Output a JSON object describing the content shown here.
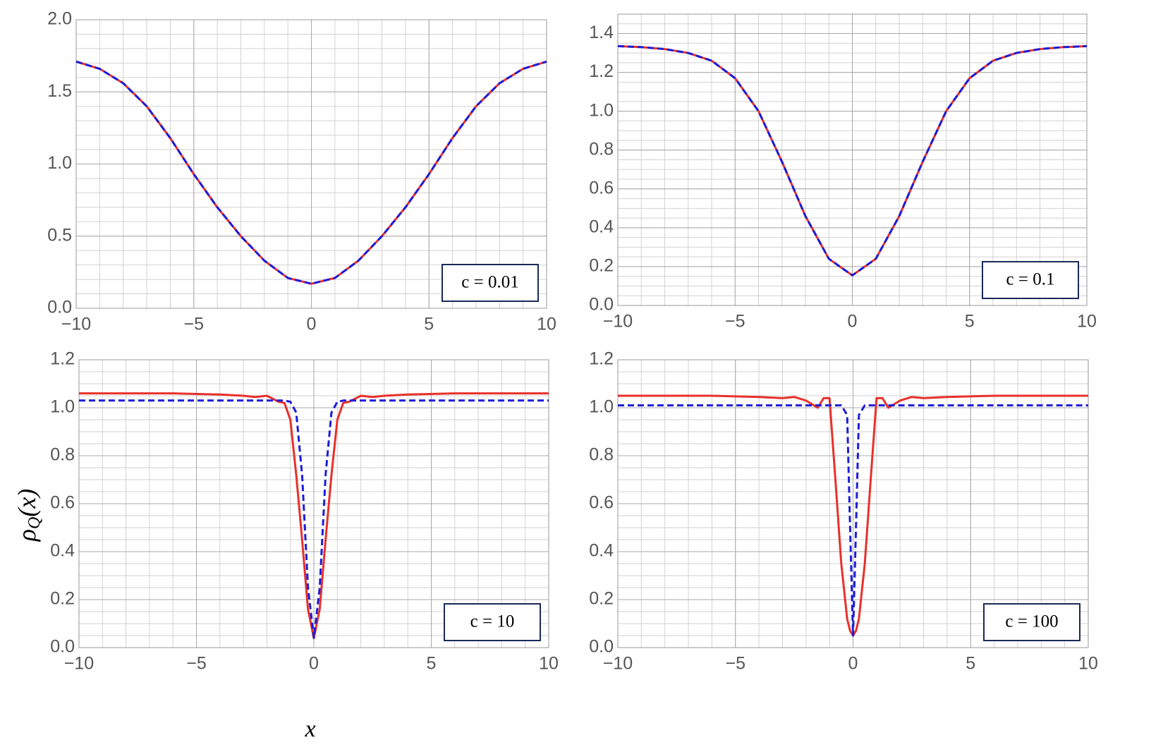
{
  "chart_data": [
    {
      "type": "line",
      "annotation": "c = 0.01",
      "x": [
        -10,
        -9,
        -8,
        -7,
        -6,
        -5,
        -4,
        -3,
        -2,
        -1,
        0,
        1,
        2,
        3,
        4,
        5,
        6,
        7,
        8,
        9,
        10
      ],
      "series": [
        {
          "color": "#e8302a",
          "style": "solid",
          "values": [
            1.71,
            1.66,
            1.56,
            1.4,
            1.18,
            0.93,
            0.7,
            0.5,
            0.33,
            0.21,
            0.17,
            0.21,
            0.33,
            0.5,
            0.7,
            0.93,
            1.18,
            1.4,
            1.56,
            1.66,
            1.71
          ]
        },
        {
          "color": "#1c1cd9",
          "style": "dashed",
          "values": [
            1.71,
            1.66,
            1.56,
            1.4,
            1.18,
            0.93,
            0.7,
            0.5,
            0.33,
            0.21,
            0.17,
            0.21,
            0.33,
            0.5,
            0.7,
            0.93,
            1.18,
            1.4,
            1.56,
            1.66,
            1.71
          ]
        }
      ],
      "xlim": [
        -10,
        10
      ],
      "xticks": [
        {
          "value": -10,
          "label": "−10"
        },
        {
          "value": -5,
          "label": "−5"
        },
        0,
        5,
        10
      ],
      "ylim": [
        0,
        2
      ],
      "yticks": [
        {
          "value": 0,
          "label": "0.0"
        },
        0.5,
        {
          "value": 1,
          "label": "1.0"
        },
        1.5,
        {
          "value": 2,
          "label": "2.0"
        }
      ],
      "xminor": [
        -10,
        -9,
        -8,
        -7,
        -6,
        -5,
        -4,
        -3,
        -2,
        -1,
        0,
        1,
        2,
        3,
        4,
        5,
        6,
        7,
        8,
        9,
        10
      ],
      "yminor": [
        0,
        0.1,
        0.2,
        0.3,
        0.4,
        0.5,
        0.6,
        0.7,
        0.8,
        0.9,
        1,
        1.1,
        1.2,
        1.3,
        1.4,
        1.5,
        1.6,
        1.7,
        1.8,
        1.9,
        2
      ],
      "grid": true
    },
    {
      "type": "line",
      "annotation": "c = 0.1",
      "x": [
        -10,
        -9,
        -8,
        -7,
        -6,
        -5,
        -4,
        -3,
        -2,
        -1,
        0,
        1,
        2,
        3,
        4,
        5,
        6,
        7,
        8,
        9,
        10
      ],
      "series": [
        {
          "color": "#e8302a",
          "style": "solid",
          "values": [
            1.335,
            1.33,
            1.32,
            1.3,
            1.26,
            1.17,
            1.0,
            0.74,
            0.46,
            0.24,
            0.155,
            0.24,
            0.46,
            0.74,
            1.0,
            1.17,
            1.26,
            1.3,
            1.32,
            1.33,
            1.335
          ]
        },
        {
          "color": "#1c1cd9",
          "style": "dashed",
          "values": [
            1.335,
            1.33,
            1.32,
            1.3,
            1.26,
            1.17,
            1.0,
            0.74,
            0.46,
            0.24,
            0.155,
            0.24,
            0.46,
            0.74,
            1.0,
            1.17,
            1.26,
            1.3,
            1.32,
            1.33,
            1.335
          ]
        }
      ],
      "xlim": [
        -10,
        10
      ],
      "xticks": [
        {
          "value": -10,
          "label": "−10"
        },
        {
          "value": -5,
          "label": "−5"
        },
        0,
        5,
        10
      ],
      "ylim": [
        0,
        1.5
      ],
      "yticks": [
        {
          "value": 0,
          "label": "0.0"
        },
        0.2,
        0.4,
        0.6,
        0.8,
        {
          "value": 1,
          "label": "1.0"
        },
        1.2,
        1.4
      ],
      "xminor": [
        -10,
        -9,
        -8,
        -7,
        -6,
        -5,
        -4,
        -3,
        -2,
        -1,
        0,
        1,
        2,
        3,
        4,
        5,
        6,
        7,
        8,
        9,
        10
      ],
      "yminor": [
        0,
        0.05,
        0.1,
        0.15,
        0.2,
        0.25,
        0.3,
        0.35,
        0.4,
        0.45,
        0.5,
        0.55,
        0.6,
        0.65,
        0.7,
        0.75,
        0.8,
        0.85,
        0.9,
        0.95,
        1,
        1.05,
        1.1,
        1.15,
        1.2,
        1.25,
        1.3,
        1.35,
        1.4,
        1.45,
        1.5
      ],
      "grid": true
    },
    {
      "type": "line",
      "annotation": "c = 10",
      "xlabel": "x",
      "ylabel": "ρQ(x)",
      "x": [
        -10,
        -8,
        -6,
        -4,
        -3,
        -2.5,
        -2,
        -1.5,
        -1.25,
        -1,
        -0.75,
        -0.5,
        -0.25,
        0,
        0.25,
        0.5,
        0.75,
        1,
        1.25,
        1.5,
        2,
        2.5,
        3,
        4,
        6,
        8,
        10
      ],
      "series": [
        {
          "color": "#e8302a",
          "style": "solid",
          "values": [
            1.06,
            1.06,
            1.06,
            1.055,
            1.05,
            1.045,
            1.05,
            1.025,
            1.02,
            0.95,
            0.72,
            0.45,
            0.16,
            0.04,
            0.16,
            0.45,
            0.72,
            0.95,
            1.02,
            1.025,
            1.05,
            1.045,
            1.05,
            1.055,
            1.06,
            1.06,
            1.06
          ]
        },
        {
          "color": "#1c1cd9",
          "style": "dashed",
          "values": [
            1.03,
            1.03,
            1.03,
            1.03,
            1.03,
            1.03,
            1.03,
            1.03,
            1.03,
            1.025,
            0.98,
            0.72,
            0.25,
            0.04,
            0.25,
            0.72,
            0.98,
            1.025,
            1.03,
            1.03,
            1.03,
            1.03,
            1.03,
            1.03,
            1.03,
            1.03,
            1.03
          ]
        }
      ],
      "xlim": [
        -10,
        10
      ],
      "xticks": [
        {
          "value": -10,
          "label": "−10"
        },
        {
          "value": -5,
          "label": "−5"
        },
        0,
        5,
        10
      ],
      "ylim": [
        0,
        1.2
      ],
      "yticks": [
        {
          "value": 0,
          "label": "0.0"
        },
        0.2,
        0.4,
        0.6,
        0.8,
        {
          "value": 1,
          "label": "1.0"
        },
        1.2
      ],
      "xminor": [
        -10,
        -9,
        -8,
        -7,
        -6,
        -5,
        -4,
        -3,
        -2,
        -1,
        0,
        1,
        2,
        3,
        4,
        5,
        6,
        7,
        8,
        9,
        10
      ],
      "yminor": [
        0,
        0.05,
        0.1,
        0.15,
        0.2,
        0.25,
        0.3,
        0.35,
        0.4,
        0.45,
        0.5,
        0.55,
        0.6,
        0.65,
        0.7,
        0.75,
        0.8,
        0.85,
        0.9,
        0.95,
        1,
        1.05,
        1.1,
        1.15,
        1.2
      ],
      "grid": true
    },
    {
      "type": "line",
      "annotation": "c = 100",
      "x": [
        -10,
        -8,
        -6,
        -4,
        -3,
        -2.5,
        -2,
        -1.5,
        -1.25,
        -1,
        -0.75,
        -0.5,
        -0.25,
        -0.125,
        0,
        0.125,
        0.25,
        0.5,
        0.75,
        1,
        1.25,
        1.5,
        2,
        2.5,
        3,
        4,
        6,
        8,
        10
      ],
      "series": [
        {
          "color": "#e8302a",
          "style": "solid",
          "values": [
            1.05,
            1.05,
            1.05,
            1.045,
            1.04,
            1.045,
            1.03,
            1.0,
            1.04,
            1.04,
            0.7,
            0.35,
            0.12,
            0.07,
            0.05,
            0.07,
            0.12,
            0.35,
            0.7,
            1.04,
            1.04,
            1.0,
            1.03,
            1.045,
            1.04,
            1.045,
            1.05,
            1.05,
            1.05
          ]
        },
        {
          "color": "#1c1cd9",
          "style": "dashed",
          "values": [
            1.01,
            1.01,
            1.01,
            1.01,
            1.01,
            1.01,
            1.01,
            1.01,
            1.01,
            1.01,
            1.01,
            1.01,
            0.97,
            0.5,
            0.05,
            0.5,
            0.97,
            1.01,
            1.01,
            1.01,
            1.01,
            1.01,
            1.01,
            1.01,
            1.01,
            1.01,
            1.01,
            1.01,
            1.01
          ]
        }
      ],
      "xlim": [
        -10,
        10
      ],
      "xticks": [
        {
          "value": -10,
          "label": "−10"
        },
        {
          "value": -5,
          "label": "−5"
        },
        0,
        5,
        10
      ],
      "ylim": [
        0,
        1.2
      ],
      "yticks": [
        {
          "value": 0,
          "label": "0.0"
        },
        0.2,
        0.4,
        0.6,
        0.8,
        {
          "value": 1,
          "label": "1.0"
        },
        1.2
      ],
      "xminor": [
        -10,
        -9,
        -8,
        -7,
        -6,
        -5,
        -4,
        -3,
        -2,
        -1,
        0,
        1,
        2,
        3,
        4,
        5,
        6,
        7,
        8,
        9,
        10
      ],
      "yminor": [
        0,
        0.05,
        0.1,
        0.15,
        0.2,
        0.25,
        0.3,
        0.35,
        0.4,
        0.45,
        0.5,
        0.55,
        0.6,
        0.65,
        0.7,
        0.75,
        0.8,
        0.85,
        0.9,
        0.95,
        1,
        1.05,
        1.1,
        1.15,
        1.2
      ],
      "grid": true
    }
  ]
}
